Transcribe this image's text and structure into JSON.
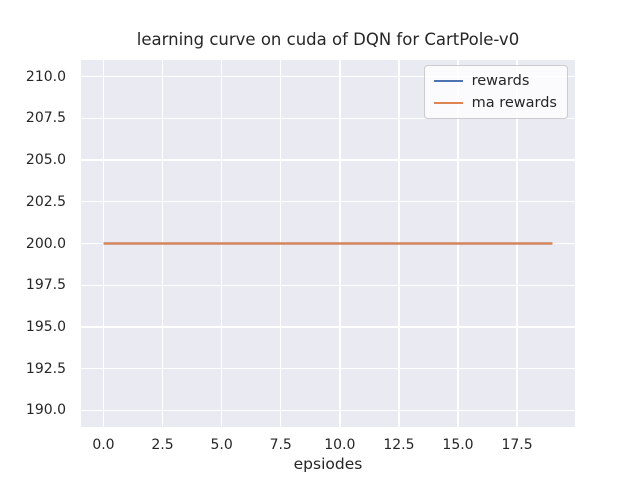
{
  "chart_data": {
    "type": "line",
    "title": "learning curve on cuda of DQN for CartPole-v0",
    "xlabel": "epsiodes",
    "ylabel": "",
    "x": [
      0,
      1,
      2,
      3,
      4,
      5,
      6,
      7,
      8,
      9,
      10,
      11,
      12,
      13,
      14,
      15,
      16,
      17,
      18,
      19
    ],
    "series": [
      {
        "name": "rewards",
        "color": "#4c72b0",
        "values": [
          200,
          200,
          200,
          200,
          200,
          200,
          200,
          200,
          200,
          200,
          200,
          200,
          200,
          200,
          200,
          200,
          200,
          200,
          200,
          200
        ]
      },
      {
        "name": "ma rewards",
        "color": "#dd8452",
        "values": [
          200,
          200,
          200,
          200,
          200,
          200,
          200,
          200,
          200,
          200,
          200,
          200,
          200,
          200,
          200,
          200,
          200,
          200,
          200,
          200
        ]
      }
    ],
    "xlim": [
      -0.95,
      19.95
    ],
    "ylim": [
      189,
      211
    ],
    "xticks": {
      "values": [
        0,
        2.5,
        5,
        7.5,
        10,
        12.5,
        15,
        17.5
      ],
      "labels": [
        "0.0",
        "2.5",
        "5.0",
        "7.5",
        "10.0",
        "12.5",
        "15.0",
        "17.5"
      ]
    },
    "yticks": {
      "values": [
        190,
        192.5,
        195,
        197.5,
        200,
        202.5,
        205,
        207.5,
        210
      ],
      "labels": [
        "190.0",
        "192.5",
        "195.0",
        "197.5",
        "200.0",
        "202.5",
        "205.0",
        "207.5",
        "210.0"
      ]
    },
    "grid": true,
    "legend": {
      "position": "upper right",
      "entries": [
        "rewards",
        "ma rewards"
      ]
    }
  },
  "colors": {
    "figure_bg": "#ffffff",
    "plot_bg": "#eaeaf2",
    "grid": "#ffffff",
    "text": "#262626",
    "legend_border": "#cccccc"
  }
}
